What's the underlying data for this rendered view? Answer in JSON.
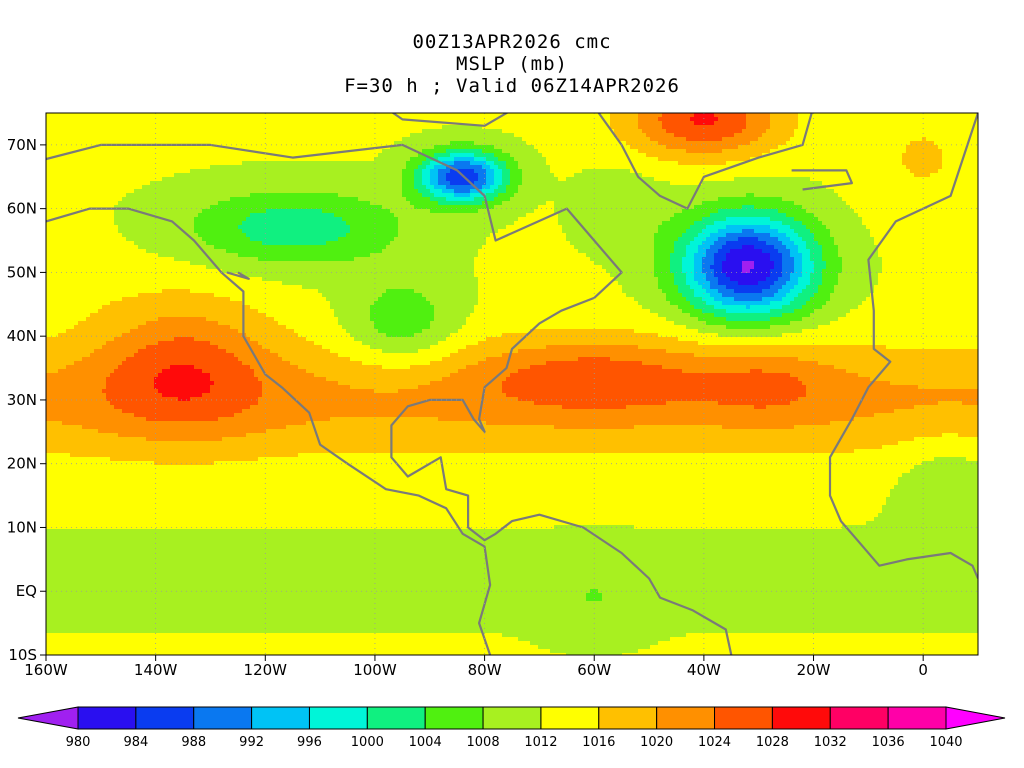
{
  "titles": {
    "line1": "00Z13APR2026 cmc",
    "line2": "MSLP (mb)",
    "line3": "F=30 h ; Valid 06Z14APR2026"
  },
  "map": {
    "lon_range": [
      -160,
      10
    ],
    "lat_range": [
      -10,
      75
    ],
    "lon_ticks": [
      {
        "value": -160,
        "label": "160W"
      },
      {
        "value": -140,
        "label": "140W"
      },
      {
        "value": -120,
        "label": "120W"
      },
      {
        "value": -100,
        "label": "100W"
      },
      {
        "value": -80,
        "label": "80W"
      },
      {
        "value": -60,
        "label": "60W"
      },
      {
        "value": -40,
        "label": "40W"
      },
      {
        "value": -20,
        "label": "20W"
      },
      {
        "value": 0,
        "label": "0"
      }
    ],
    "lat_ticks": [
      {
        "value": 70,
        "label": "70N"
      },
      {
        "value": 60,
        "label": "60N"
      },
      {
        "value": 50,
        "label": "50N"
      },
      {
        "value": 40,
        "label": "40N"
      },
      {
        "value": 30,
        "label": "30N"
      },
      {
        "value": 20,
        "label": "20N"
      },
      {
        "value": 10,
        "label": "10N"
      },
      {
        "value": 0,
        "label": "EQ"
      },
      {
        "value": -10,
        "label": "10S"
      }
    ],
    "pressure_systems": [
      {
        "type": "high",
        "lon": -135,
        "lat": 36,
        "value": 1030
      },
      {
        "type": "high",
        "lon": -60,
        "lat": 34,
        "value": 1026
      },
      {
        "type": "high",
        "lon": -28,
        "lat": 33,
        "value": 1025
      },
      {
        "type": "high",
        "lon": -40,
        "lat": 72,
        "value": 1033
      },
      {
        "type": "high",
        "lon": -68,
        "lat": 40,
        "value": 1020
      },
      {
        "type": "low",
        "lon": -32,
        "lat": 51,
        "value": 981
      },
      {
        "type": "low",
        "lon": -84,
        "lat": 65,
        "value": 982
      },
      {
        "type": "low",
        "lon": -115,
        "lat": 57,
        "value": 1002
      },
      {
        "type": "low",
        "lon": -95,
        "lat": 40,
        "value": 1007
      },
      {
        "type": "low",
        "lon": -60,
        "lat": -1,
        "value": 1008
      },
      {
        "type": "low",
        "lon": 5,
        "lat": 18,
        "value": 1006
      }
    ]
  },
  "colorbar": {
    "levels": [
      980,
      984,
      988,
      992,
      996,
      1000,
      1004,
      1008,
      1012,
      1016,
      1020,
      1024,
      1028,
      1032,
      1036,
      1040
    ],
    "labels": [
      "980",
      "984",
      "988",
      "992",
      "996",
      "1000",
      "1004",
      "1008",
      "1012",
      "1016",
      "1020",
      "1024",
      "1028",
      "1032",
      "1036",
      "1040"
    ],
    "colors": [
      "#a020f0",
      "#2a0ff0",
      "#0a3cf0",
      "#0a78f0",
      "#00c3f5",
      "#00f5d8",
      "#10f080",
      "#50f010",
      "#a8f020",
      "#ffff00",
      "#ffc000",
      "#ff9000",
      "#ff5500",
      "#ff0a0a",
      "#ff0064",
      "#ff00a8",
      "#ff00ff"
    ]
  },
  "chart_data": {
    "type": "heatmap",
    "title": "00Z13APR2026 cmc",
    "subtitle": "MSLP (mb) ; F=30 h ; Valid 06Z14APR2026",
    "x_range": [
      -160,
      10
    ],
    "y_range": [
      -10,
      75
    ],
    "color_levels": [
      980,
      984,
      988,
      992,
      996,
      1000,
      1004,
      1008,
      1012,
      1016,
      1020,
      1024,
      1028,
      1032,
      1036,
      1040
    ],
    "background_value": 1013,
    "features": [
      {
        "kind": "high",
        "lon": -135,
        "lat": 36,
        "value": 1030
      },
      {
        "kind": "high",
        "lon": -60,
        "lat": 34,
        "value": 1026
      },
      {
        "kind": "high",
        "lon": -28,
        "lat": 33,
        "value": 1025
      },
      {
        "kind": "high",
        "lon": -40,
        "lat": 72,
        "value": 1033
      },
      {
        "kind": "low",
        "lon": -32,
        "lat": 51,
        "value": 981
      },
      {
        "kind": "low",
        "lon": -84,
        "lat": 65,
        "value": 982
      },
      {
        "kind": "low",
        "lon": -115,
        "lat": 57,
        "value": 1002
      },
      {
        "kind": "low",
        "lon": -95,
        "lat": 40,
        "value": 1007
      }
    ],
    "grid": true
  }
}
